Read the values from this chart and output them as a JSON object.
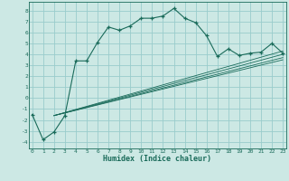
{
  "xlabel": "Humidex (Indice chaleur)",
  "background_color": "#cce8e4",
  "grid_color": "#99cccc",
  "line_color": "#1a6b5a",
  "x_ticks": [
    0,
    1,
    2,
    3,
    4,
    5,
    6,
    7,
    8,
    9,
    10,
    11,
    12,
    13,
    14,
    15,
    16,
    17,
    18,
    19,
    20,
    21,
    22,
    23
  ],
  "y_ticks": [
    -4,
    -3,
    -2,
    -1,
    0,
    1,
    2,
    3,
    4,
    5,
    6,
    7,
    8
  ],
  "ylim": [
    -4.6,
    8.8
  ],
  "xlim": [
    -0.3,
    23.3
  ],
  "main_line": {
    "x": [
      0,
      1,
      2,
      3,
      4,
      5,
      6,
      7,
      8,
      9,
      10,
      11,
      12,
      13,
      14,
      15,
      16,
      17,
      18,
      19,
      20,
      21,
      22,
      23
    ],
    "y": [
      -1.5,
      -3.8,
      -3.1,
      -1.6,
      3.4,
      3.4,
      5.1,
      6.5,
      6.2,
      6.6,
      7.3,
      7.3,
      7.5,
      8.2,
      7.3,
      6.9,
      5.7,
      3.8,
      4.5,
      3.9,
      4.1,
      4.2,
      5.0,
      4.1
    ]
  },
  "reg_lines": [
    {
      "x": [
        2.0,
        23.0
      ],
      "y": [
        -1.6,
        3.5
      ]
    },
    {
      "x": [
        2.0,
        23.0
      ],
      "y": [
        -1.6,
        3.7
      ]
    },
    {
      "x": [
        2.0,
        23.0
      ],
      "y": [
        -1.6,
        4.0
      ]
    },
    {
      "x": [
        2.0,
        23.0
      ],
      "y": [
        -1.6,
        4.3
      ]
    }
  ]
}
